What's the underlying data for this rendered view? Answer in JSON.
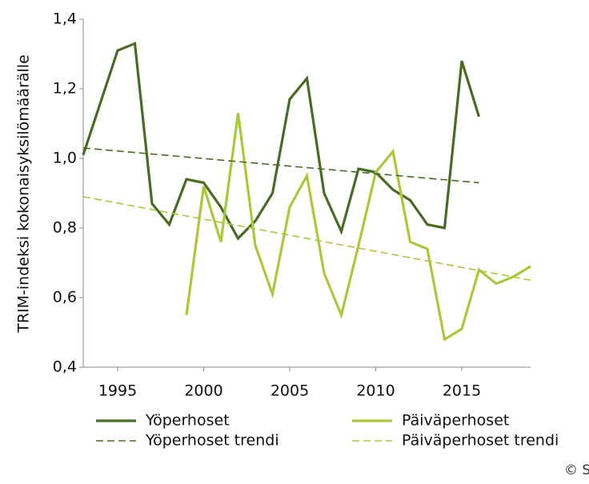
{
  "chart_data": {
    "type": "line",
    "y_label": "TRIM-indeksi kokonaisyksilömäärälle",
    "xlim": [
      1993,
      2019
    ],
    "xticks": [
      1995,
      2000,
      2005,
      2010,
      2015
    ],
    "ylim": [
      0.4,
      1.4
    ],
    "yticks": [
      {
        "value": 0.4,
        "label": "0,4"
      },
      {
        "value": 0.6,
        "label": "0,6"
      },
      {
        "value": 0.8,
        "label": "0,8"
      },
      {
        "value": 1.0,
        "label": "1,0"
      },
      {
        "value": 1.2,
        "label": "1,2"
      },
      {
        "value": 1.4,
        "label": "1,4"
      }
    ],
    "grid": false,
    "series": [
      {
        "name": "Yöperhoset",
        "color": "#4a6b24",
        "dashed": false,
        "x": [
          1993,
          1994,
          1995,
          1996,
          1997,
          1998,
          1999,
          2000,
          2001,
          2002,
          2003,
          2004,
          2005,
          2006,
          2007,
          2008,
          2009,
          2010,
          2011,
          2012,
          2013,
          2014,
          2015,
          2016
        ],
        "values": [
          1.01,
          1.16,
          1.31,
          1.33,
          0.87,
          0.81,
          0.94,
          0.93,
          0.86,
          0.77,
          0.82,
          0.9,
          1.17,
          1.23,
          0.9,
          0.79,
          0.97,
          0.96,
          0.91,
          0.88,
          0.81,
          0.8,
          1.28,
          1.12
        ]
      },
      {
        "name": "Päiväperhoset",
        "color": "#a8c93a",
        "dashed": false,
        "x": [
          1999,
          2000,
          2001,
          2002,
          2003,
          2004,
          2005,
          2006,
          2007,
          2008,
          2009,
          2010,
          2011,
          2012,
          2013,
          2014,
          2015,
          2016,
          2017,
          2018,
          2019
        ],
        "values": [
          0.55,
          0.92,
          0.76,
          1.13,
          0.75,
          0.61,
          0.86,
          0.95,
          0.67,
          0.55,
          0.75,
          0.96,
          1.02,
          0.76,
          0.74,
          0.48,
          0.51,
          0.68,
          0.64,
          0.66,
          0.69
        ]
      },
      {
        "name": "Yöperhoset trendi",
        "color": "#4a6b24",
        "dashed": true,
        "x": [
          1993,
          2016
        ],
        "values": [
          1.03,
          0.93
        ]
      },
      {
        "name": "Päiväperhoset trendi",
        "color": "#a8c93a",
        "dashed": true,
        "x": [
          1993,
          2019
        ],
        "values": [
          0.89,
          0.65
        ]
      }
    ],
    "credit": "© SYKE"
  }
}
